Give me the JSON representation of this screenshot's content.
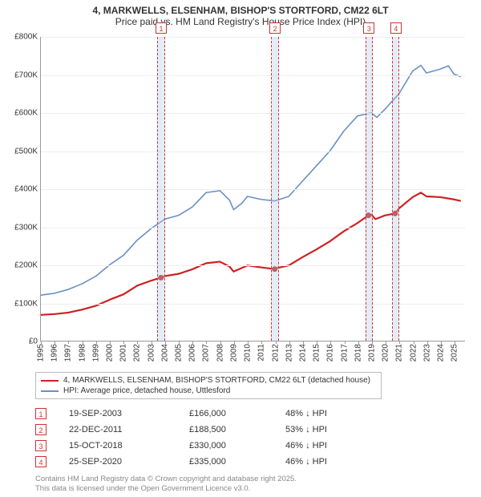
{
  "title": {
    "line1": "4, MARKWELLS, ELSENHAM, BISHOP'S STORTFORD, CM22 6LT",
    "line2": "Price paid vs. HM Land Registry's House Price Index (HPI)"
  },
  "chart": {
    "type": "line",
    "background_color": "#ffffff",
    "grid_color": "#eeeeee",
    "x": {
      "min": 1995,
      "max": 2025.8,
      "ticks": [
        1995,
        1996,
        1997,
        1998,
        1999,
        2000,
        2001,
        2002,
        2003,
        2004,
        2005,
        2006,
        2007,
        2008,
        2009,
        2010,
        2011,
        2012,
        2013,
        2014,
        2015,
        2016,
        2017,
        2018,
        2019,
        2020,
        2021,
        2022,
        2023,
        2024,
        2025
      ]
    },
    "y": {
      "min": 0,
      "max": 800000,
      "ticks": [
        0,
        100000,
        200000,
        300000,
        400000,
        500000,
        600000,
        700000,
        800000
      ],
      "labels": [
        "£0",
        "£100K",
        "£200K",
        "£300K",
        "£400K",
        "£500K",
        "£600K",
        "£700K",
        "£800K"
      ]
    },
    "series": [
      {
        "name": "4, MARKWELLS, ELSENHAM, BISHOP'S STORTFORD, CM22 6LT (detached house)",
        "color": "#cc2222",
        "width": 2.2,
        "points": [
          [
            1995,
            68000
          ],
          [
            1996,
            70000
          ],
          [
            1997,
            74000
          ],
          [
            1998,
            82000
          ],
          [
            1999,
            92000
          ],
          [
            2000,
            108000
          ],
          [
            2001,
            122000
          ],
          [
            2002,
            145000
          ],
          [
            2003,
            158000
          ],
          [
            2003.72,
            166000
          ],
          [
            2004,
            170000
          ],
          [
            2005,
            176000
          ],
          [
            2006,
            188000
          ],
          [
            2007,
            204000
          ],
          [
            2008,
            208000
          ],
          [
            2008.7,
            195000
          ],
          [
            2009,
            182000
          ],
          [
            2010,
            198000
          ],
          [
            2011,
            193000
          ],
          [
            2011.98,
            188500
          ],
          [
            2012,
            190000
          ],
          [
            2013,
            198000
          ],
          [
            2014,
            220000
          ],
          [
            2015,
            240000
          ],
          [
            2016,
            262000
          ],
          [
            2017,
            288000
          ],
          [
            2018,
            310000
          ],
          [
            2018.79,
            330000
          ],
          [
            2019,
            332000
          ],
          [
            2019.3,
            320000
          ],
          [
            2020,
            330000
          ],
          [
            2020.73,
            335000
          ],
          [
            2021,
            348000
          ],
          [
            2022,
            378000
          ],
          [
            2022.6,
            390000
          ],
          [
            2023,
            380000
          ],
          [
            2024,
            378000
          ],
          [
            2025,
            372000
          ],
          [
            2025.5,
            368000
          ]
        ]
      },
      {
        "name": "HPI: Average price, detached house, Uttlesford",
        "color": "#6a8fc7",
        "width": 1.6,
        "points": [
          [
            1995,
            120000
          ],
          [
            1996,
            125000
          ],
          [
            1997,
            135000
          ],
          [
            1998,
            150000
          ],
          [
            1999,
            170000
          ],
          [
            2000,
            200000
          ],
          [
            2001,
            225000
          ],
          [
            2002,
            265000
          ],
          [
            2003,
            295000
          ],
          [
            2004,
            320000
          ],
          [
            2005,
            330000
          ],
          [
            2006,
            352000
          ],
          [
            2007,
            390000
          ],
          [
            2008,
            395000
          ],
          [
            2008.7,
            370000
          ],
          [
            2009,
            345000
          ],
          [
            2009.6,
            362000
          ],
          [
            2010,
            380000
          ],
          [
            2011,
            372000
          ],
          [
            2012,
            368000
          ],
          [
            2013,
            380000
          ],
          [
            2014,
            420000
          ],
          [
            2015,
            460000
          ],
          [
            2016,
            500000
          ],
          [
            2017,
            552000
          ],
          [
            2018,
            592000
          ],
          [
            2019,
            600000
          ],
          [
            2019.4,
            588000
          ],
          [
            2020,
            610000
          ],
          [
            2021,
            650000
          ],
          [
            2022,
            710000
          ],
          [
            2022.6,
            725000
          ],
          [
            2023,
            705000
          ],
          [
            2024,
            715000
          ],
          [
            2024.6,
            724000
          ],
          [
            2025,
            702000
          ],
          [
            2025.5,
            695000
          ]
        ]
      }
    ],
    "sale_band_width_years": 0.55,
    "sales": [
      {
        "idx": "1",
        "x": 2003.72,
        "date": "19-SEP-2003",
        "price": "£166,000",
        "delta": "48% ↓ HPI"
      },
      {
        "idx": "2",
        "x": 2011.98,
        "date": "22-DEC-2011",
        "price": "£188,500",
        "delta": "53% ↓ HPI"
      },
      {
        "idx": "3",
        "x": 2018.79,
        "date": "15-OCT-2018",
        "price": "£330,000",
        "delta": "46% ↓ HPI"
      },
      {
        "idx": "4",
        "x": 2020.73,
        "date": "25-SEP-2020",
        "price": "£335,000",
        "delta": "46% ↓ HPI"
      }
    ],
    "sale_dot_values": [
      166000,
      188500,
      330000,
      335000
    ]
  },
  "legend": {
    "rows": [
      {
        "color": "#cc2222",
        "label": "4, MARKWELLS, ELSENHAM, BISHOP'S STORTFORD, CM22 6LT (detached house)"
      },
      {
        "color": "#6a8fc7",
        "label": "HPI: Average price, detached house, Uttlesford"
      }
    ]
  },
  "footer": {
    "line1": "Contains HM Land Registry data © Crown copyright and database right 2025.",
    "line2": "This data is licensed under the Open Government Licence v3.0."
  }
}
